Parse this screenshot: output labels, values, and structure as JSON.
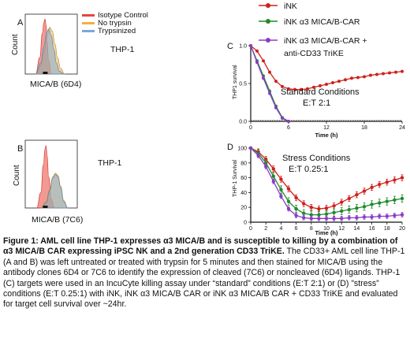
{
  "legend_top": {
    "items": [
      {
        "label": "iNK",
        "color": "#d0201b"
      },
      {
        "label": "iNK α3 MICA/B-CAR",
        "color": "#1f8a2c"
      },
      {
        "label": "iNK α3 MICA/B-CAR +",
        "color": "#8a3bc8"
      },
      {
        "label": "anti-CD33 TriKE",
        "color": ""
      }
    ]
  },
  "chart_data": [
    {
      "panel": "A",
      "type": "area",
      "ylabel": "Count",
      "xlabel": "MICA/B (6D4)",
      "annotation": "THP-1",
      "legend": [
        {
          "name": "Isotype Control",
          "color": "#e8453c"
        },
        {
          "name": "No trypsin",
          "color": "#f0b040"
        },
        {
          "name": "Trypsinized",
          "color": "#7aa8d8"
        }
      ],
      "series": [
        {
          "name": "Isotype Control",
          "x": [
            0.2,
            0.28,
            0.33,
            0.36,
            0.38,
            0.4,
            0.42,
            0.45,
            0.5
          ],
          "y": [
            0,
            0.3,
            0.75,
            0.95,
            1.0,
            0.9,
            0.6,
            0.25,
            0
          ]
        },
        {
          "name": "No trypsin",
          "x": [
            0.2,
            0.3,
            0.36,
            0.42,
            0.47,
            0.52,
            0.57,
            0.62,
            0.68,
            0.76
          ],
          "y": [
            0,
            0.15,
            0.4,
            0.7,
            0.85,
            0.78,
            0.55,
            0.3,
            0.1,
            0
          ]
        },
        {
          "name": "Trypsinized",
          "x": [
            0.2,
            0.3,
            0.36,
            0.41,
            0.45,
            0.5,
            0.55,
            0.6,
            0.66,
            0.74
          ],
          "y": [
            0,
            0.2,
            0.5,
            0.75,
            0.82,
            0.7,
            0.45,
            0.2,
            0.05,
            0
          ]
        }
      ]
    },
    {
      "panel": "B",
      "type": "area",
      "ylabel": "Count",
      "xlabel": "MICA/B (7C6)",
      "annotation": "THP-1",
      "series": [
        {
          "name": "Isotype Control",
          "x": [
            0.22,
            0.3,
            0.35,
            0.38,
            0.4,
            0.42,
            0.45,
            0.5,
            0.56
          ],
          "y": [
            0,
            0.25,
            0.7,
            0.95,
            1.0,
            0.85,
            0.5,
            0.15,
            0
          ]
        },
        {
          "name": "No trypsin",
          "x": [
            0.3,
            0.4,
            0.47,
            0.53,
            0.58,
            0.63,
            0.68,
            0.74,
            0.82
          ],
          "y": [
            0,
            0.1,
            0.3,
            0.5,
            0.56,
            0.52,
            0.35,
            0.12,
            0
          ]
        },
        {
          "name": "Trypsinized",
          "x": [
            0.3,
            0.4,
            0.47,
            0.53,
            0.58,
            0.63,
            0.68,
            0.74,
            0.82
          ],
          "y": [
            0,
            0.08,
            0.27,
            0.48,
            0.54,
            0.5,
            0.33,
            0.1,
            0
          ]
        }
      ]
    },
    {
      "panel": "C",
      "type": "line",
      "ylabel": "THP1 survival",
      "xlabel": "Time (h)",
      "annotation": "Standard Conditions",
      "annotation2": "E:T 2:1",
      "xlim": [
        0,
        24
      ],
      "ylim": [
        0,
        1.0
      ],
      "xticks": [
        0,
        6,
        12,
        18,
        24
      ],
      "yticks": [
        0.0,
        0.5,
        1.0
      ],
      "series": [
        {
          "name": "iNK",
          "color": "#d0201b",
          "x": [
            0,
            1,
            2,
            3,
            4,
            5,
            6,
            7,
            8,
            9,
            10,
            11,
            12,
            13,
            14,
            15,
            16,
            17,
            18,
            19,
            20,
            21,
            22,
            23,
            24
          ],
          "y": [
            1.0,
            0.93,
            0.8,
            0.65,
            0.53,
            0.46,
            0.43,
            0.42,
            0.42,
            0.43,
            0.45,
            0.47,
            0.49,
            0.51,
            0.53,
            0.55,
            0.57,
            0.58,
            0.59,
            0.61,
            0.62,
            0.63,
            0.64,
            0.65,
            0.66
          ]
        },
        {
          "name": "iNK α3 MICA/B-CAR",
          "color": "#1f8a2c",
          "x": [
            0,
            1,
            2,
            3,
            4,
            5,
            6
          ],
          "y": [
            1.0,
            0.8,
            0.6,
            0.4,
            0.2,
            0.05,
            0.0
          ]
        },
        {
          "name": "iNK α3 MICA/B-CAR + anti-CD33 TriKE",
          "color": "#8a3bc8",
          "x": [
            0,
            1,
            2,
            3,
            4,
            5,
            6
          ],
          "y": [
            1.0,
            0.78,
            0.57,
            0.37,
            0.18,
            0.04,
            0.0
          ]
        }
      ]
    },
    {
      "panel": "D",
      "type": "line",
      "ylabel": "THP-1 Survival",
      "xlabel": "Time (h)",
      "annotation": "Stress Conditions",
      "annotation2": "E:T 0.25:1",
      "xlim": [
        0,
        20
      ],
      "ylim": [
        0,
        100
      ],
      "xticks": [
        0,
        2,
        4,
        6,
        8,
        10,
        12,
        14,
        16,
        18,
        20
      ],
      "yticks": [
        0,
        20,
        40,
        60,
        80,
        100
      ],
      "series": [
        {
          "name": "iNK",
          "color": "#d0201b",
          "x": [
            0,
            1,
            2,
            3,
            4,
            5,
            6,
            7,
            8,
            9,
            10,
            11,
            12,
            13,
            14,
            15,
            16,
            17,
            18,
            19,
            20
          ],
          "y": [
            100,
            95,
            85,
            72,
            58,
            45,
            33,
            25,
            20,
            18,
            19,
            22,
            27,
            32,
            37,
            42,
            47,
            51,
            54,
            57,
            60
          ]
        },
        {
          "name": "iNK α3 MICA/B-CAR",
          "color": "#1f8a2c",
          "x": [
            0,
            1,
            2,
            3,
            4,
            5,
            6,
            7,
            8,
            9,
            10,
            11,
            12,
            13,
            14,
            15,
            16,
            17,
            18,
            19,
            20
          ],
          "y": [
            100,
            93,
            80,
            62,
            44,
            28,
            18,
            12,
            10,
            10,
            11,
            13,
            15,
            17,
            19,
            21,
            24,
            26,
            28,
            30,
            32
          ]
        },
        {
          "name": "iNK α3 MICA/B-CAR + anti-CD33 TriKE",
          "color": "#8a3bc8",
          "x": [
            0,
            1,
            2,
            3,
            4,
            5,
            6,
            7,
            8,
            9,
            10,
            11,
            12,
            13,
            14,
            15,
            16,
            17,
            18,
            19,
            20
          ],
          "y": [
            100,
            90,
            75,
            55,
            35,
            18,
            9,
            6,
            5,
            5,
            5,
            5,
            5,
            6,
            6,
            7,
            7,
            8,
            8,
            9,
            10
          ]
        }
      ]
    }
  ],
  "caption": {
    "bold": "Figure 1: AML cell line THP-1 expresses α3 MICA/B and is susceptible to killing by a combination of α3 MICA/B CAR expressing iPSC NK and a 2nd generation CD33 TriKE.",
    "body": " The CD33+ AML cell line THP-1 (A and B) was left untreated or treated with trypsin for 5 minutes and then stained for MICA/B using the antibody clones 6D4 or 7C6 to identify the expression of cleaved (7C6) or noncleaved (6D4) ligands. THP-1 (C) targets were used in an IncuCyte killing assay under “standard” conditions (E:T 2:1) or (D) ”stress” conditions (E:T 0.25:1) with iNK, iNK α3 MICA/B CAR or iNK α3 MICA/B CAR + CD33 TriKE and evaluated for target cell survival over ~24hr."
  }
}
